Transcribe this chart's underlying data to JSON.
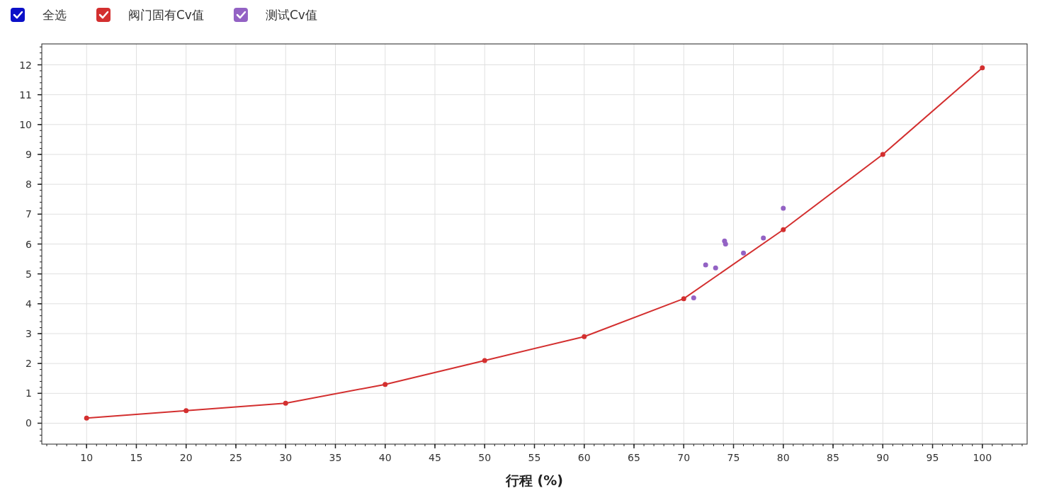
{
  "chart_data": {
    "type": "line",
    "xlabel": "行程 (%)",
    "annotations": [
      "全选"
    ],
    "xlim": [
      5.5,
      104.5
    ],
    "ylim": [
      -0.7,
      12.7
    ],
    "xticks": [
      10,
      15,
      20,
      25,
      30,
      35,
      40,
      45,
      50,
      55,
      60,
      65,
      70,
      75,
      80,
      85,
      90,
      95,
      100
    ],
    "yticks": [
      0,
      1,
      2,
      3,
      4,
      5,
      6,
      7,
      8,
      9,
      10,
      11,
      12
    ],
    "grid": true,
    "legend": "top left",
    "marker": "circle",
    "series": [
      {
        "name": "阀门固有Cv值",
        "color": "#d32f2f",
        "x": [
          10,
          20,
          30,
          40,
          50,
          60,
          70,
          80,
          90,
          100
        ],
        "values": [
          0.17,
          0.42,
          0.67,
          1.3,
          2.1,
          2.9,
          4.17,
          6.48,
          9.0,
          11.9
        ]
      },
      {
        "name": "测试Cv值",
        "type": "scatter",
        "color": "#9362c4",
        "x": [
          71.0,
          72.2,
          73.2,
          74.1,
          74.2,
          76.0,
          78.0,
          80.0
        ],
        "values": [
          4.2,
          5.3,
          5.2,
          6.1,
          6.0,
          5.7,
          6.2,
          7.2
        ]
      }
    ]
  }
}
